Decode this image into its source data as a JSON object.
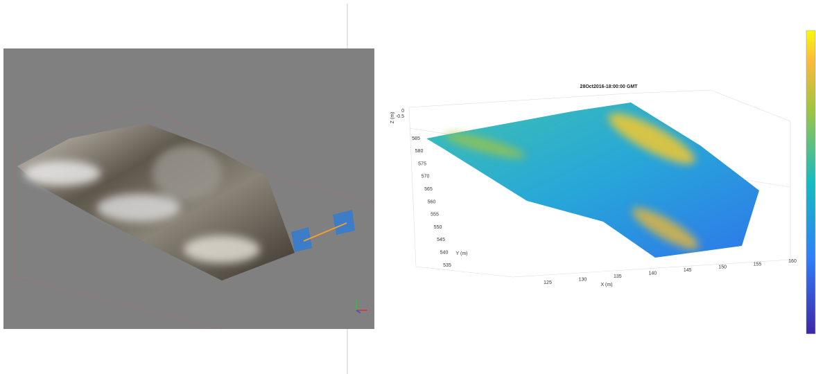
{
  "plot": {
    "title": "28Oct2016-18:00:00 GMT",
    "x_label": "X (m)",
    "y_label": "Y (m)",
    "z_label": "Z (m)",
    "x_ticks": [
      "125",
      "130",
      "135",
      "140",
      "145",
      "150",
      "155",
      "160"
    ],
    "y_ticks": [
      "585",
      "580",
      "575",
      "570",
      "565",
      "560",
      "555",
      "550",
      "545",
      "540",
      "535"
    ],
    "z_ticks": [
      "0",
      "-0.5"
    ]
  }
}
